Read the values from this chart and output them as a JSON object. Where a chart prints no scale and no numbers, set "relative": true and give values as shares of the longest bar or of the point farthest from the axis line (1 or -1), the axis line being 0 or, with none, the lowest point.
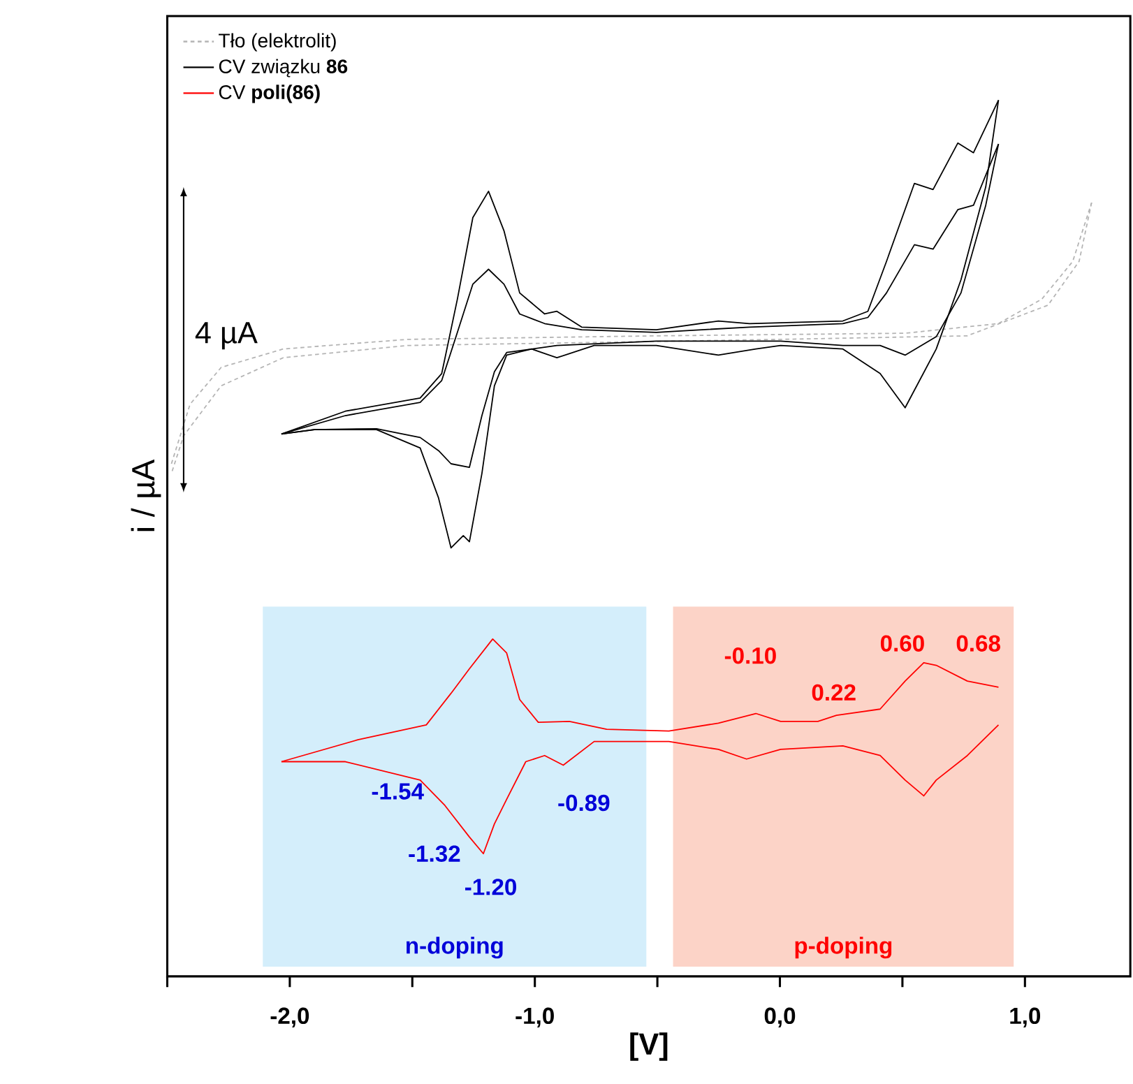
{
  "chart_data": {
    "type": "line",
    "relative": true,
    "xlabel": "[V]",
    "ylabel": "i / µA",
    "legend": "top left",
    "xlim": [
      -2.5,
      1.43
    ],
    "xticks": [
      {
        "value": -2.5,
        "label": null
      },
      {
        "value": -2,
        "label": "-2,0"
      },
      {
        "value": -1.5,
        "label": null
      },
      {
        "value": -1,
        "label": "-1,0"
      },
      {
        "value": -0.5,
        "label": null
      },
      {
        "value": 0,
        "label": "0,0"
      },
      {
        "value": 0.5,
        "label": null
      },
      {
        "value": 1,
        "label": "1,0"
      }
    ],
    "series": [
      {
        "name": "Tło (elektrolit)",
        "color": "#b4b4b4",
        "line_style": "dashed",
        "x": [
          -2.483,
          -2.407,
          -2.28,
          -2.027,
          -1.519,
          -0.504,
          0.511,
          0.892,
          1.069,
          1.195,
          1.272
        ],
        "values": [
          0.585,
          0.653,
          0.695,
          0.716,
          0.727,
          0.731,
          0.734,
          0.745,
          0.773,
          0.816,
          0.883
        ]
      },
      {
        "color": "#b4b4b4",
        "line_style": "dashed",
        "x": [
          1.272,
          1.221,
          1.094,
          0.764,
          0.003,
          -1.519,
          -2.027,
          -2.28,
          -2.433,
          -2.483
        ],
        "values": [
          0.883,
          0.816,
          0.766,
          0.731,
          0.727,
          0.72,
          0.706,
          0.674,
          0.617,
          0.574
        ]
      },
      {
        "name": "CV związku **86**",
        "color": "#000000",
        "line_style": "solid",
        "x": [
          -2.034,
          -1.773,
          -1.468,
          -1.38,
          -1.316,
          -1.253,
          -1.189,
          -1.126,
          -1.062,
          -0.96,
          -0.91,
          -0.809,
          -0.504,
          -0.251,
          -0.124,
          0.257,
          0.359,
          0.435,
          0.549,
          0.625,
          0.726,
          0.79,
          0.892
        ],
        "values": [
          0.619,
          0.645,
          0.66,
          0.688,
          0.773,
          0.866,
          0.896,
          0.851,
          0.78,
          0.756,
          0.759,
          0.741,
          0.738,
          0.748,
          0.745,
          0.748,
          0.759,
          0.816,
          0.905,
          0.898,
          0.951,
          0.94,
          1.0
        ]
      },
      {
        "color": "#000000",
        "line_style": "solid",
        "x": [
          0.892,
          0.84,
          0.739,
          0.638,
          0.511,
          0.409,
          0.257,
          0.003,
          -0.098,
          -0.251,
          -0.504,
          -0.758,
          -0.91,
          -1.013,
          -1.115,
          -1.165,
          -1.216,
          -1.267,
          -1.292,
          -1.342,
          -1.393,
          -1.468,
          -1.646,
          -1.9,
          -2.034
        ],
        "values": [
          1.0,
          0.901,
          0.795,
          0.716,
          0.649,
          0.688,
          0.716,
          0.72,
          0.716,
          0.709,
          0.72,
          0.72,
          0.706,
          0.716,
          0.709,
          0.674,
          0.574,
          0.496,
          0.503,
          0.489,
          0.546,
          0.603,
          0.624,
          0.624,
          0.619
        ]
      },
      {
        "color": "#000000",
        "line_style": "solid",
        "x": [
          -2.034,
          -1.773,
          -1.468,
          -1.38,
          -1.316,
          -1.253,
          -1.189,
          -1.126,
          -1.062,
          -0.96,
          -0.809,
          -0.504,
          -0.124,
          0.257,
          0.359,
          0.435,
          0.549,
          0.625,
          0.726,
          0.79,
          0.892
        ],
        "values": [
          0.619,
          0.64,
          0.655,
          0.68,
          0.735,
          0.79,
          0.807,
          0.79,
          0.756,
          0.745,
          0.738,
          0.735,
          0.741,
          0.745,
          0.752,
          0.78,
          0.835,
          0.83,
          0.875,
          0.88,
          0.95
        ]
      },
      {
        "color": "#000000",
        "line_style": "solid",
        "x": [
          0.892,
          0.84,
          0.739,
          0.638,
          0.511,
          0.409,
          0.257,
          0.003,
          -0.504,
          -0.91,
          -1.115,
          -1.165,
          -1.216,
          -1.267,
          -1.342,
          -1.393,
          -1.468,
          -1.646,
          -1.9,
          -2.034
        ],
        "values": [
          0.95,
          0.88,
          0.78,
          0.73,
          0.709,
          0.72,
          0.72,
          0.725,
          0.725,
          0.72,
          0.712,
          0.69,
          0.64,
          0.581,
          0.585,
          0.6,
          0.615,
          0.625,
          0.624,
          0.619
        ]
      },
      {
        "name": "CV **poli(86)**",
        "color": "#ff0000",
        "line_style": "solid",
        "x": [
          -2.034,
          -1.722,
          -1.443,
          -1.342,
          -1.267,
          -1.172,
          -1.115,
          -1.062,
          -0.986,
          -0.859,
          -0.707,
          -0.453,
          -0.251,
          -0.098,
          0.003,
          0.155,
          0.231,
          0.409,
          0.511,
          0.587,
          0.638,
          0.765,
          0.892
        ],
        "values": [
          0.245,
          0.27,
          0.287,
          0.323,
          0.351,
          0.385,
          0.369,
          0.316,
          0.29,
          0.291,
          0.282,
          0.28,
          0.289,
          0.3,
          0.291,
          0.291,
          0.298,
          0.305,
          0.337,
          0.358,
          0.355,
          0.337,
          0.33
        ]
      },
      {
        "color": "#ff0000",
        "line_style": "solid",
        "x": [
          0.892,
          0.765,
          0.638,
          0.587,
          0.511,
          0.409,
          0.257,
          0.003,
          -0.136,
          -0.251,
          -0.453,
          -0.758,
          -0.884,
          -0.96,
          -1.037,
          -1.115,
          -1.165,
          -1.21,
          -1.267,
          -1.367,
          -1.468,
          -1.773,
          -2.034
        ],
        "values": [
          0.287,
          0.252,
          0.224,
          0.206,
          0.224,
          0.252,
          0.263,
          0.259,
          0.248,
          0.259,
          0.268,
          0.268,
          0.241,
          0.252,
          0.245,
          0.202,
          0.174,
          0.14,
          0.159,
          0.195,
          0.224,
          0.245,
          0.245
        ]
      }
    ],
    "bands": [
      {
        "axis": "x",
        "from": -2.11,
        "to": -0.545,
        "label": "n-doping",
        "color": "#d4eefb"
      },
      {
        "axis": "x",
        "from": -0.436,
        "to": 0.954,
        "label": "p-doping",
        "color": "#fcd3c7"
      }
    ],
    "annotations": [
      "4 µA",
      "-0.10",
      "0.22",
      "0.60",
      "0.68",
      "-1.54",
      "-1.32",
      "-1.20",
      "-0.89"
    ]
  }
}
